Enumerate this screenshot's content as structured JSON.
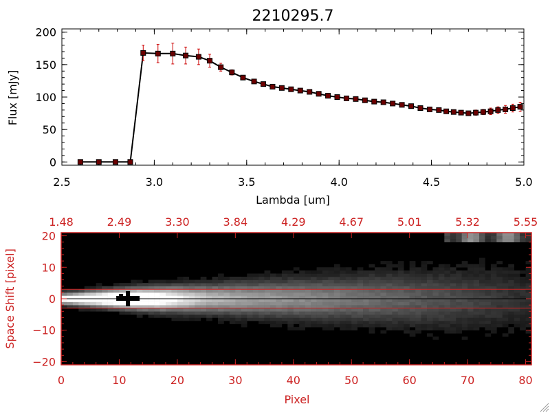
{
  "chart_data": [
    {
      "type": "line",
      "title": "2210295.7",
      "xlabel": "Lambda [um]",
      "ylabel": "Flux [mJy]",
      "xlim": [
        2.5,
        5.0
      ],
      "ylim": [
        -5,
        205
      ],
      "x_ticks": [
        2.5,
        3.0,
        3.5,
        4.0,
        4.5,
        5.0
      ],
      "x_tick_labels": [
        "2.5",
        "3.0",
        "3.5",
        "4.0",
        "4.5",
        "5.0"
      ],
      "y_ticks": [
        0,
        50,
        100,
        150,
        200
      ],
      "y_tick_labels": [
        "0",
        "50",
        "100",
        "150",
        "200"
      ],
      "line_color": "#000000",
      "marker_color": "#6b0000",
      "errorbar_color": "#cc0000",
      "series": [
        {
          "x": [
            2.6,
            2.7,
            2.79,
            2.87,
            2.94,
            3.02,
            3.1,
            3.17,
            3.24,
            3.3,
            3.36,
            3.42,
            3.48,
            3.54,
            3.59,
            3.64,
            3.69,
            3.74,
            3.79,
            3.84,
            3.89,
            3.94,
            3.99,
            4.04,
            4.09,
            4.14,
            4.19,
            4.24,
            4.29,
            4.34,
            4.39,
            4.44,
            4.49,
            4.54,
            4.58,
            4.62,
            4.66,
            4.7,
            4.74,
            4.78,
            4.82,
            4.86,
            4.9,
            4.94,
            4.98
          ],
          "y": [
            0,
            0,
            0,
            0,
            168,
            167,
            167,
            164,
            162,
            156,
            146,
            138,
            130,
            124,
            120,
            116,
            114,
            112,
            110,
            108,
            105,
            102,
            100,
            98,
            97,
            95,
            93,
            92,
            90,
            88,
            86,
            83,
            81,
            80,
            78,
            77,
            76,
            75,
            76,
            77,
            78,
            80,
            81,
            83,
            85
          ],
          "err": [
            0,
            0,
            0,
            0,
            12,
            14,
            16,
            13,
            12,
            10,
            6,
            4,
            3,
            3,
            3,
            2,
            2,
            2,
            2,
            2,
            2,
            2,
            2,
            2,
            2,
            2,
            2,
            2,
            2,
            2,
            2,
            2,
            2,
            2,
            2,
            2,
            3,
            3,
            4,
            4,
            5,
            5,
            6,
            6,
            7
          ]
        }
      ]
    },
    {
      "type": "heatmap",
      "xlabel": "Pixel",
      "ylabel": "Space Shift [pixel]",
      "xlim": [
        0,
        81
      ],
      "ylim": [
        -21,
        21
      ],
      "x_ticks": [
        0,
        10,
        20,
        30,
        40,
        50,
        60,
        70,
        80
      ],
      "x_tick_labels": [
        "0",
        "10",
        "20",
        "30",
        "40",
        "50",
        "60",
        "70",
        "80"
      ],
      "y_ticks": [
        -20,
        -10,
        0,
        10,
        20
      ],
      "y_tick_labels": [
        "−20",
        "−10",
        "0",
        "10",
        "20"
      ],
      "top_x_ticks": [
        0,
        10,
        20,
        30,
        40,
        50,
        60,
        70,
        80
      ],
      "top_tick_labels": [
        "1.48",
        "2.49",
        "3.30",
        "3.84",
        "4.29",
        "4.67",
        "5.01",
        "5.32",
        "5.55"
      ],
      "extraction_lines": [
        3,
        -3
      ],
      "trace_center": 0,
      "peak_pixel": 11.5,
      "axis_color": "#cc2222",
      "extraction_line_color": "#cc2222",
      "background_color": "#000000",
      "marker_color": "#000000"
    }
  ]
}
